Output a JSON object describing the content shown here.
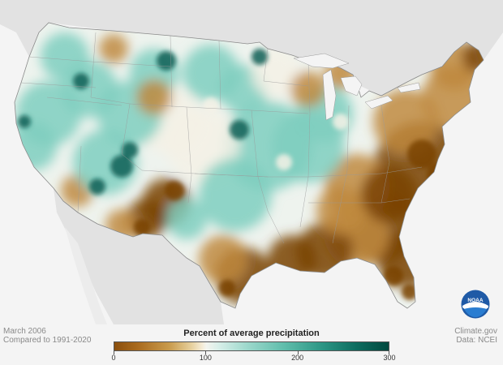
{
  "map": {
    "period": "March 2006",
    "baseline": "Compared to 1991-2020",
    "credit": "Climate.gov",
    "source": "Data: NCEI",
    "logo_text": "NOAA"
  },
  "legend": {
    "title": "Percent of average precipitation",
    "ticks": [
      "0",
      "100",
      "200",
      "300"
    ],
    "range": [
      0,
      300
    ]
  },
  "colors": {
    "very_dry": "#7a4307",
    "dry": "#c08a3e",
    "near_normal": "#f4f1e6",
    "wet": "#7fcfc0",
    "very_wet": "#0b5f55",
    "land_outside": "#e3e3e3",
    "water": "#f4f4f4"
  }
}
